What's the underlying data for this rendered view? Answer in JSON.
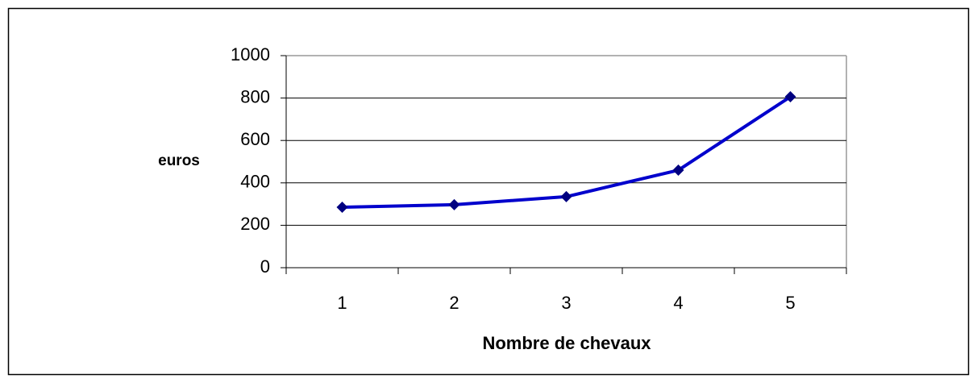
{
  "chart_data": {
    "type": "line",
    "x_label": "Nombre de chevaux",
    "y_label": "euros",
    "categories": [
      "1",
      "2",
      "3",
      "4",
      "5"
    ],
    "series": [
      {
        "color": "#0000cc",
        "marker_color": "#000080",
        "values": [
          285,
          297,
          335,
          460,
          806
        ]
      }
    ],
    "ylim": [
      0,
      1000
    ],
    "yticks": [
      0,
      200,
      400,
      600,
      800,
      1000
    ],
    "grid": true
  }
}
